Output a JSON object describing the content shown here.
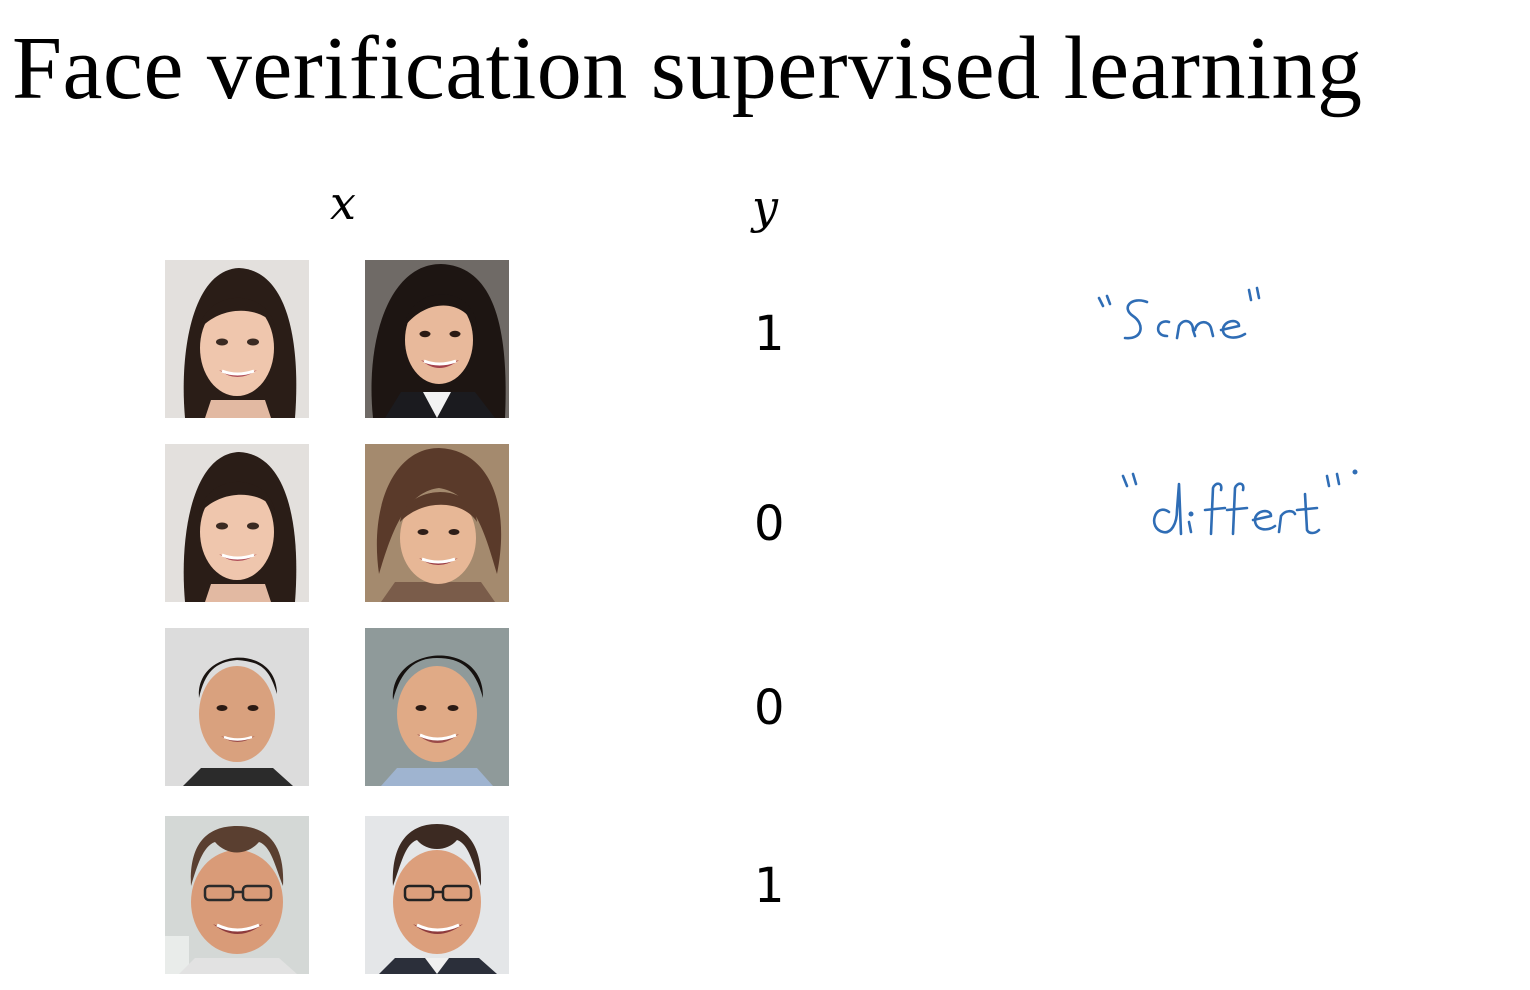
{
  "slide": {
    "title": "Face verification supervised learning",
    "x_header": "x",
    "y_header": "y"
  },
  "rows": [
    {
      "label": "1",
      "left_face": "young-woman-long-dark-hair",
      "right_face": "woman-dark-hair-blazer"
    },
    {
      "label": "0",
      "left_face": "young-woman-long-dark-hair",
      "right_face": "older-woman-short-hair"
    },
    {
      "label": "0",
      "left_face": "young-man-short-dark-hair",
      "right_face": "man-short-dark-hair-smiling"
    },
    {
      "label": "1",
      "left_face": "man-glasses-receding-hair",
      "right_face": "man-glasses-receding-hair-2"
    }
  ],
  "handwritten": {
    "same": "\"Same\"",
    "different": "\"different\"",
    "ink_color": "#2f6db5"
  },
  "colors": {
    "background": "#ffffff",
    "text": "#000000"
  }
}
